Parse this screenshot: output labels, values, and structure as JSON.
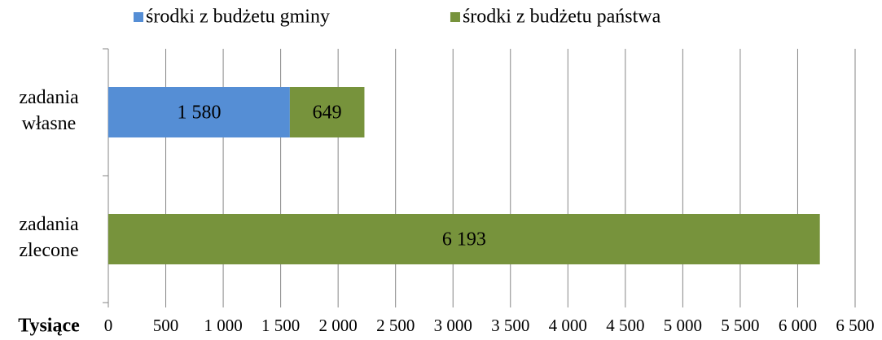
{
  "chart_data": {
    "type": "stacked_barh",
    "x_label": "Tysiące",
    "categories": [
      "zadania własne",
      "zadania zlecone"
    ],
    "series": [
      {
        "name": "środki z budżetu gminy",
        "color": "#558ed5",
        "values": [
          1580,
          null
        ],
        "value_labels": [
          "1 580",
          null
        ]
      },
      {
        "name": "środki z budżetu państwa",
        "color": "#77933c",
        "values": [
          649,
          6193
        ],
        "value_labels": [
          "649",
          "6 193"
        ]
      }
    ],
    "xlim": [
      0,
      6500
    ],
    "xticks": [
      0,
      500,
      {
        "value": 1000,
        "label": "1 000"
      },
      {
        "value": 1500,
        "label": "1 500"
      },
      {
        "value": 2000,
        "label": "2 000"
      },
      {
        "value": 2500,
        "label": "2 500"
      },
      {
        "value": 3000,
        "label": "3 000"
      },
      {
        "value": 3500,
        "label": "3 500"
      },
      {
        "value": 4000,
        "label": "4 000"
      },
      {
        "value": 4500,
        "label": "4 500"
      },
      {
        "value": 5000,
        "label": "5 000"
      },
      {
        "value": 5500,
        "label": "5 500"
      },
      {
        "value": 6000,
        "label": "6 000"
      },
      {
        "value": 6500,
        "label": "6 500"
      }
    ],
    "grid": true,
    "legend": "top"
  }
}
